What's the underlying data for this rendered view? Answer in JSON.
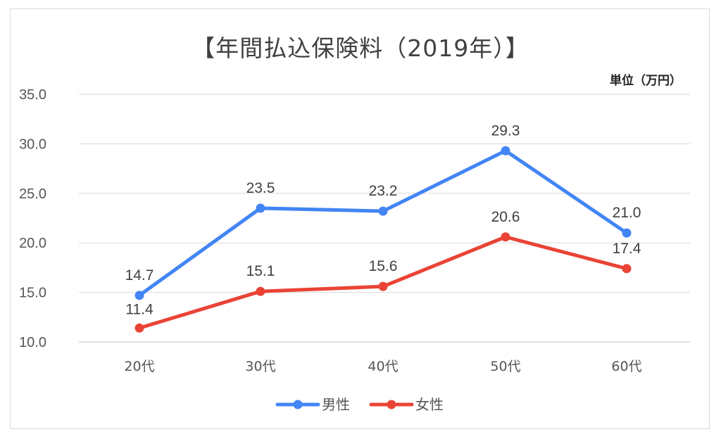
{
  "chart_data": {
    "type": "line",
    "title": "【年間払込保険料（2019年）】",
    "unit_label": "単位（万円）",
    "categories": [
      "20代",
      "30代",
      "40代",
      "50代",
      "60代"
    ],
    "ylim": [
      10.0,
      35.0
    ],
    "yticks": [
      "35.0",
      "30.0",
      "25.0",
      "20.0",
      "15.0",
      "10.0"
    ],
    "grid": true,
    "legend_position": "bottom",
    "series": [
      {
        "name": "男性",
        "color": "#4285f4",
        "values": [
          14.7,
          23.5,
          23.2,
          29.3,
          21.0
        ]
      },
      {
        "name": "女性",
        "color": "#ea4335",
        "values": [
          11.4,
          15.1,
          15.6,
          20.6,
          17.4
        ]
      }
    ]
  }
}
